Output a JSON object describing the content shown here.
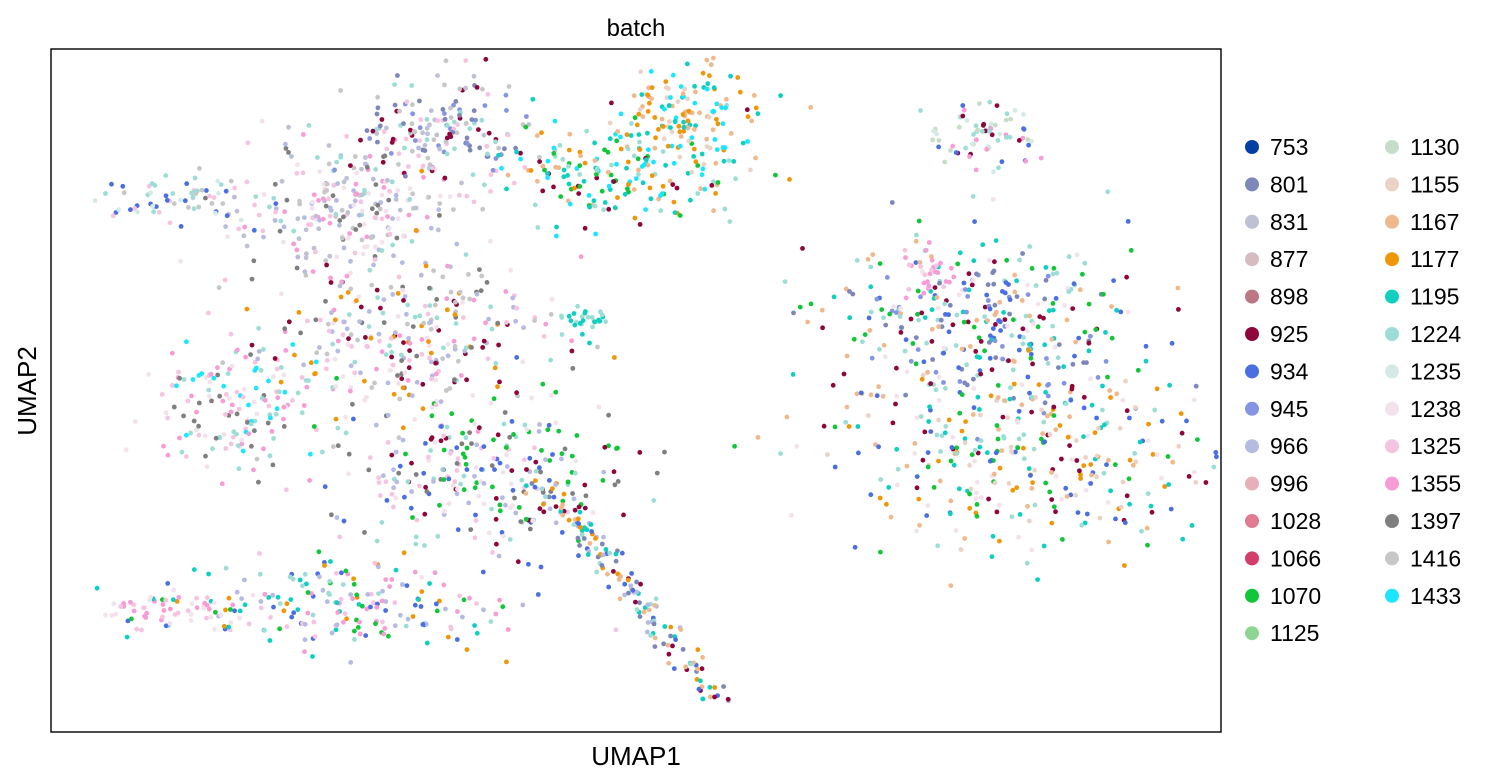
{
  "chart_data": {
    "type": "scatter",
    "title": "batch",
    "xlabel": "UMAP1",
    "ylabel": "UMAP2",
    "xlim": [
      0,
      100
    ],
    "ylim": [
      0,
      100
    ],
    "x_ticks": [],
    "y_ticks": [],
    "grid": false,
    "legend_position": "right",
    "legend_columns": 2,
    "series": [
      {
        "name": "753",
        "color": "#023fa5"
      },
      {
        "name": "801",
        "color": "#7d87b9"
      },
      {
        "name": "831",
        "color": "#bec1d4"
      },
      {
        "name": "877",
        "color": "#d6bcc0"
      },
      {
        "name": "898",
        "color": "#bb7784"
      },
      {
        "name": "925",
        "color": "#8e063b"
      },
      {
        "name": "934",
        "color": "#4a6fe3"
      },
      {
        "name": "945",
        "color": "#8595e1"
      },
      {
        "name": "966",
        "color": "#b5bbe3"
      },
      {
        "name": "996",
        "color": "#e6afb9"
      },
      {
        "name": "1028",
        "color": "#e07b91"
      },
      {
        "name": "1066",
        "color": "#d33f6a"
      },
      {
        "name": "1070",
        "color": "#11c638"
      },
      {
        "name": "1125",
        "color": "#8dd593"
      },
      {
        "name": "1130",
        "color": "#c6dec7"
      },
      {
        "name": "1155",
        "color": "#ead3c6"
      },
      {
        "name": "1167",
        "color": "#f0b98d"
      },
      {
        "name": "1177",
        "color": "#ef9708"
      },
      {
        "name": "1195",
        "color": "#0fcfc0"
      },
      {
        "name": "1224",
        "color": "#9cded6"
      },
      {
        "name": "1235",
        "color": "#d5eae7"
      },
      {
        "name": "1238",
        "color": "#f3e1eb"
      },
      {
        "name": "1325",
        "color": "#f6c4e1"
      },
      {
        "name": "1355",
        "color": "#f79cd4"
      },
      {
        "name": "1397",
        "color": "#7f7f7f"
      },
      {
        "name": "1416",
        "color": "#c7c7c7"
      },
      {
        "name": "1433",
        "color": "#1ce6ff"
      }
    ],
    "clusters": [
      {
        "x": 26,
        "y": 77,
        "sx": 4.5,
        "sy": 5.0,
        "n": 260,
        "palette": [
          "1416",
          "831",
          "1325",
          "1224",
          "966",
          "1238",
          "1397",
          "1355"
        ]
      },
      {
        "x": 34,
        "y": 88,
        "sx": 4.0,
        "sy": 4.0,
        "n": 160,
        "palette": [
          "831",
          "1416",
          "1224",
          "925",
          "801",
          "1325",
          "945"
        ]
      },
      {
        "x": 48,
        "y": 82,
        "sx": 5.0,
        "sy": 4.0,
        "n": 180,
        "palette": [
          "1195",
          "1433",
          "1167",
          "1224",
          "1177",
          "925",
          "1070"
        ]
      },
      {
        "x": 54,
        "y": 90,
        "sx": 3.0,
        "sy": 4.0,
        "n": 140,
        "palette": [
          "1167",
          "1195",
          "1177",
          "1155",
          "1433"
        ]
      },
      {
        "x": 12,
        "y": 78,
        "sx": 3.5,
        "sy": 2.0,
        "n": 70,
        "palette": [
          "1224",
          "1235",
          "934",
          "1325",
          "1416"
        ]
      },
      {
        "x": 16,
        "y": 47,
        "sx": 3.5,
        "sy": 5.0,
        "n": 150,
        "palette": [
          "1433",
          "1238",
          "1397",
          "1224",
          "1325",
          "1355"
        ]
      },
      {
        "x": 30,
        "y": 57,
        "sx": 6.5,
        "sy": 6.0,
        "n": 300,
        "palette": [
          "1224",
          "1397",
          "1177",
          "925",
          "966",
          "1325",
          "1238",
          "1416",
          "1355"
        ]
      },
      {
        "x": 37,
        "y": 38,
        "sx": 6.0,
        "sy": 6.0,
        "n": 280,
        "palette": [
          "925",
          "1224",
          "966",
          "1325",
          "1238",
          "1397",
          "934",
          "1070"
        ]
      },
      {
        "x": 24,
        "y": 19,
        "sx": 8.0,
        "sy": 3.0,
        "n": 200,
        "palette": [
          "1224",
          "1195",
          "1177",
          "1355",
          "1325",
          "966",
          "1070",
          "934"
        ]
      },
      {
        "x": 10,
        "y": 18,
        "sx": 3.0,
        "sy": 1.5,
        "n": 50,
        "palette": [
          "1355",
          "1325",
          "1238"
        ]
      },
      {
        "x": 45,
        "y": 60,
        "sx": 1.3,
        "sy": 1.3,
        "n": 28,
        "palette": [
          "1195",
          "1224"
        ]
      },
      {
        "x": 80,
        "y": 87,
        "sx": 2.2,
        "sy": 2.5,
        "n": 70,
        "palette": [
          "1224",
          "1235",
          "1130",
          "925",
          "934",
          "1355"
        ]
      },
      {
        "x": 80,
        "y": 60,
        "sx": 6.5,
        "sy": 7.0,
        "n": 360,
        "palette": [
          "925",
          "934",
          "1224",
          "1238",
          "801",
          "1167",
          "1070",
          "1195",
          "945"
        ]
      },
      {
        "x": 83,
        "y": 40,
        "sx": 8.0,
        "sy": 7.0,
        "n": 330,
        "palette": [
          "925",
          "1167",
          "1224",
          "934",
          "1177",
          "1238",
          "1070",
          "1155",
          "1195"
        ]
      },
      {
        "x": 75,
        "y": 67,
        "sx": 1.2,
        "sy": 2.0,
        "n": 30,
        "palette": [
          "1355",
          "1325"
        ]
      }
    ],
    "trail": {
      "from": [
        42,
        37
      ],
      "to": [
        57,
        5
      ],
      "n": 150,
      "spread": 0.8,
      "palette": [
        "934",
        "801",
        "1224",
        "1167",
        "925",
        "966",
        "1177",
        "1195"
      ]
    }
  }
}
